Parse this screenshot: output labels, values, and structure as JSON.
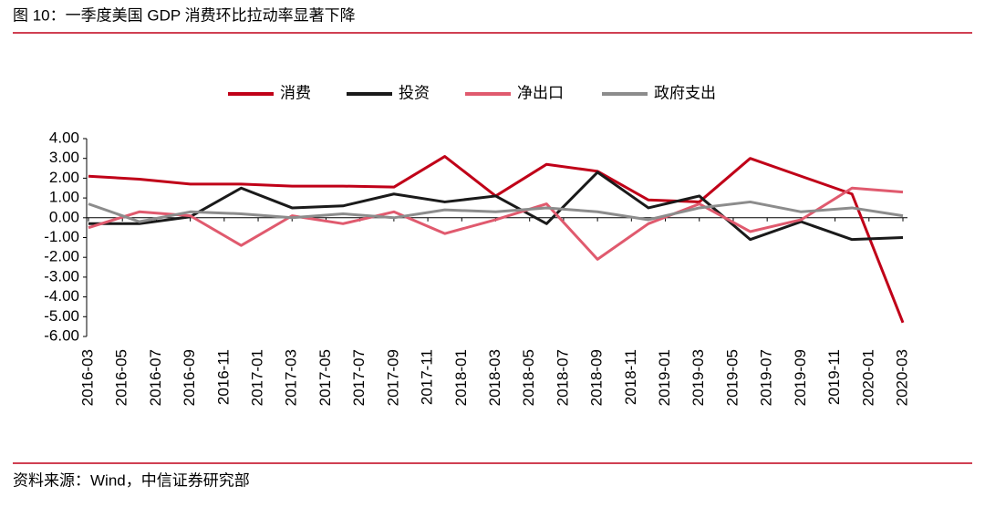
{
  "title": "图 10：一季度美国 GDP 消费环比拉动率显著下降",
  "source": "资料来源：Wind，中信证券研究部",
  "chart_data": {
    "type": "line",
    "x": [
      "2016-03",
      "2016-06",
      "2016-09",
      "2016-12",
      "2017-03",
      "2017-06",
      "2017-09",
      "2017-12",
      "2018-03",
      "2018-06",
      "2018-09",
      "2018-12",
      "2019-03",
      "2019-06",
      "2019-09",
      "2019-12",
      "2020-03"
    ],
    "series": [
      {
        "name": "消费",
        "color": "#c00018",
        "values": [
          2.1,
          1.95,
          1.7,
          1.7,
          1.6,
          1.6,
          1.55,
          3.1,
          1.1,
          2.7,
          2.35,
          0.9,
          0.8,
          3.0,
          2.1,
          1.2,
          -5.3
        ]
      },
      {
        "name": "投资",
        "color": "#1a1a1a",
        "values": [
          -0.3,
          -0.3,
          0.05,
          1.5,
          0.5,
          0.6,
          1.2,
          0.8,
          1.1,
          -0.3,
          2.3,
          0.5,
          1.1,
          -1.1,
          -0.2,
          -1.1,
          -1.0
        ]
      },
      {
        "name": "净出口",
        "color": "#e05a6e",
        "values": [
          -0.5,
          0.3,
          0.1,
          -1.4,
          0.1,
          -0.3,
          0.3,
          -0.8,
          -0.1,
          0.7,
          -2.1,
          -0.3,
          0.7,
          -0.7,
          -0.1,
          1.5,
          1.3
        ]
      },
      {
        "name": "政府支出",
        "color": "#8c8c8c",
        "values": [
          0.7,
          -0.2,
          0.3,
          0.2,
          0.0,
          0.2,
          0.0,
          0.4,
          0.3,
          0.5,
          0.3,
          -0.1,
          0.5,
          0.8,
          0.3,
          0.5,
          0.1
        ]
      }
    ],
    "xlim": [
      "2016-03",
      "2020-03"
    ],
    "xticks": [
      "2016-03",
      "2016-05",
      "2016-07",
      "2016-09",
      "2016-11",
      "2017-01",
      "2017-03",
      "2017-05",
      "2017-07",
      "2017-09",
      "2017-11",
      "2018-01",
      "2018-03",
      "2018-05",
      "2018-07",
      "2018-09",
      "2018-11",
      "2019-01",
      "2019-03",
      "2019-05",
      "2019-07",
      "2019-09",
      "2019-11",
      "2020-01",
      "2020-03"
    ],
    "ylim": [
      -6,
      4
    ],
    "yticks": [
      {
        "value": 4,
        "label": "4.00"
      },
      {
        "value": 3,
        "label": "3.00"
      },
      {
        "value": 2,
        "label": "2.00"
      },
      {
        "value": 1,
        "label": "1.00"
      },
      {
        "value": 0,
        "label": "0.00"
      },
      {
        "value": -1,
        "label": "-1.00"
      },
      {
        "value": -2,
        "label": "-2.00"
      },
      {
        "value": -3,
        "label": "-3.00"
      },
      {
        "value": -4,
        "label": "-4.00"
      },
      {
        "value": -5,
        "label": "-5.00"
      },
      {
        "value": -6,
        "label": "-6.00"
      }
    ],
    "legend": "top"
  }
}
